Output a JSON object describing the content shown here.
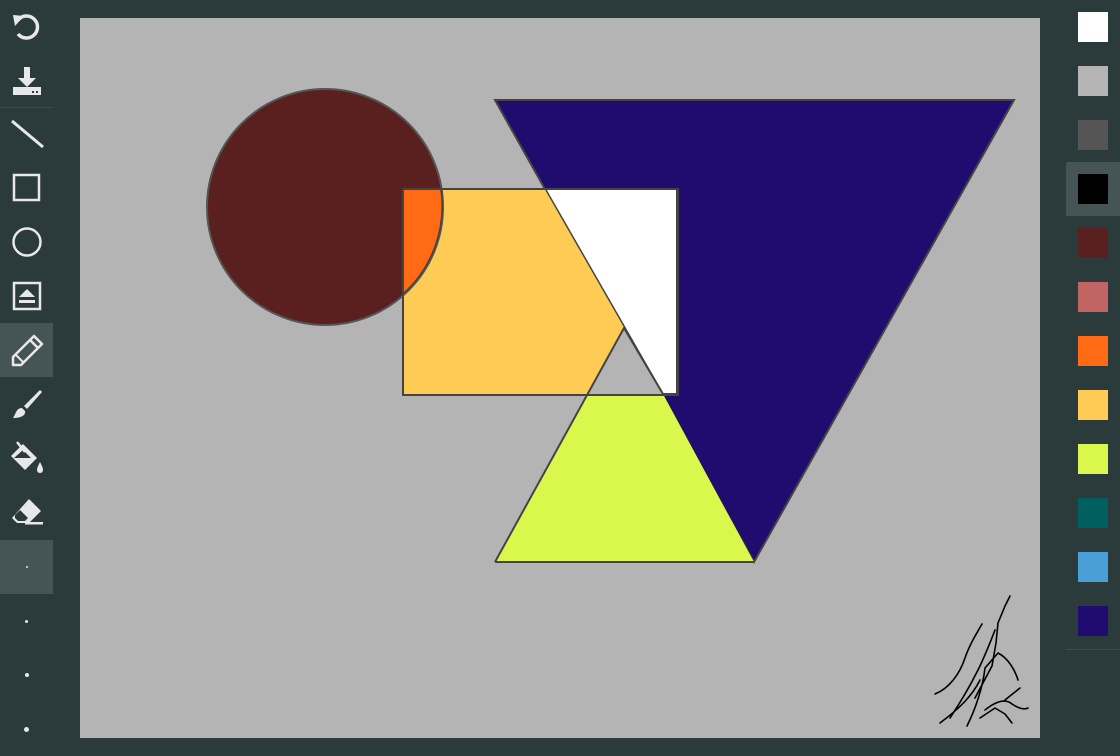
{
  "toolbar": {
    "tools": [
      {
        "id": "undo",
        "icon": "undo-icon"
      },
      {
        "id": "save",
        "icon": "download-icon"
      },
      {
        "id": "line",
        "icon": "line-icon"
      },
      {
        "id": "rectangle",
        "icon": "rectangle-icon"
      },
      {
        "id": "ellipse",
        "icon": "circle-icon"
      },
      {
        "id": "image",
        "icon": "image-icon"
      },
      {
        "id": "pencil",
        "icon": "pencil-icon",
        "active": true
      },
      {
        "id": "brush",
        "icon": "brush-icon"
      },
      {
        "id": "fill",
        "icon": "paint-bucket-icon"
      },
      {
        "id": "eraser",
        "icon": "eraser-icon"
      }
    ],
    "brush_sizes": [
      {
        "id": "size-1",
        "active": true
      },
      {
        "id": "size-2"
      },
      {
        "id": "size-3"
      },
      {
        "id": "size-4"
      }
    ]
  },
  "canvas": {
    "background": "#b4b4b4",
    "shapes": [
      {
        "type": "circle",
        "fill": "#5a1f1f"
      },
      {
        "type": "inverted-triangle",
        "fill": "#200b6e"
      },
      {
        "type": "rectangle",
        "fill": "#fecb55"
      },
      {
        "type": "triangle",
        "fill": "#d9f84b"
      },
      {
        "type": "signature-scribble",
        "stroke": "#000000"
      }
    ]
  },
  "palette": {
    "colors": [
      {
        "hex": "#ffffff"
      },
      {
        "hex": "#b4b4b4"
      },
      {
        "hex": "#555555"
      },
      {
        "hex": "#000000",
        "selected": true
      },
      {
        "hex": "#5a1f1f"
      },
      {
        "hex": "#c06464"
      },
      {
        "hex": "#ff6a14"
      },
      {
        "hex": "#fecb55"
      },
      {
        "hex": "#d9f84b"
      },
      {
        "hex": "#006060"
      },
      {
        "hex": "#4a9fd8"
      },
      {
        "hex": "#200b6e"
      }
    ]
  }
}
